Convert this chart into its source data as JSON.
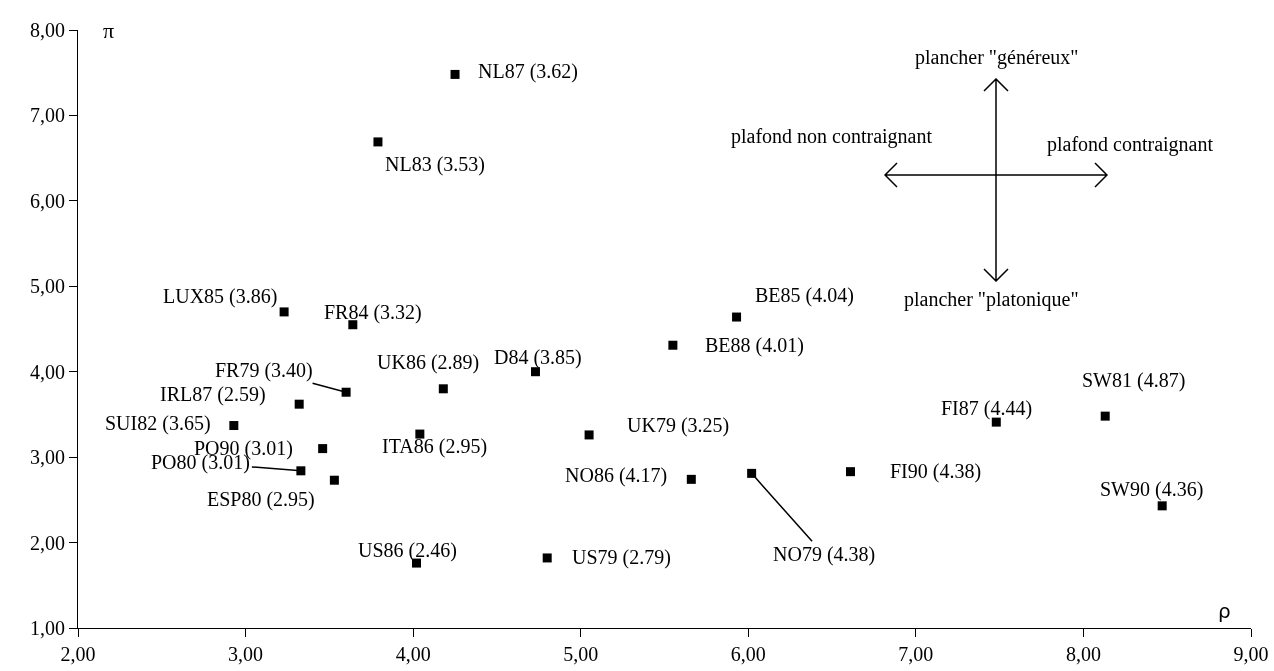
{
  "chart_data": {
    "type": "scatter",
    "xlabel": "ρ",
    "ylabel": "π",
    "x": [
      4.25,
      3.79,
      3.23,
      3.64,
      3.6,
      4.18,
      3.32,
      2.93,
      3.46,
      3.33,
      3.53,
      4.04,
      4.73,
      5.05,
      5.93,
      5.55,
      5.66,
      6.02,
      6.61,
      7.48,
      8.13,
      8.47,
      4.02,
      4.8
    ],
    "series": [
      {
        "color": "#000000",
        "values": [
          7.48,
          6.69,
          4.7,
          4.55,
          3.76,
          3.8,
          3.62,
          3.37,
          3.1,
          2.84,
          2.73,
          3.27,
          4.0,
          3.26,
          4.64,
          4.31,
          2.74,
          2.81,
          2.83,
          3.41,
          3.48,
          2.43,
          1.76,
          1.82
        ]
      }
    ],
    "xlim": [
      2,
      9
    ],
    "xticks": [
      {
        "value": 2,
        "label": "2,00"
      },
      {
        "value": 3,
        "label": "3,00"
      },
      {
        "value": 4,
        "label": "4,00"
      },
      {
        "value": 5,
        "label": "5,00"
      },
      {
        "value": 6,
        "label": "6,00"
      },
      {
        "value": 7,
        "label": "7,00"
      },
      {
        "value": 8,
        "label": "8,00"
      },
      {
        "value": 9,
        "label": "9,00"
      }
    ],
    "ylim": [
      1,
      8
    ],
    "yticks": [
      {
        "value": 1,
        "label": "1,00"
      },
      {
        "value": 2,
        "label": "2,00"
      },
      {
        "value": 3,
        "label": "3,00"
      },
      {
        "value": 4,
        "label": "4,00"
      },
      {
        "value": 5,
        "label": "5,00"
      },
      {
        "value": 6,
        "label": "6,00"
      },
      {
        "value": 7,
        "label": "7,00"
      },
      {
        "value": 8,
        "label": "8,00"
      }
    ],
    "grid": false,
    "marker": "square",
    "annotations": [
      {
        "text": "NL87 (3.62)",
        "x": 4.25,
        "y": 7.48
      },
      {
        "text": "NL83 (3.53)",
        "x": 3.79,
        "y": 6.69
      },
      {
        "text": "LUX85 (3.86)",
        "x": 3.23,
        "y": 4.7
      },
      {
        "text": "FR84 (3.32)",
        "x": 3.64,
        "y": 4.55
      },
      {
        "text": "FR79 (3.40)",
        "x": 3.6,
        "y": 3.76
      },
      {
        "text": "UK86 (2.89)",
        "x": 4.18,
        "y": 3.8
      },
      {
        "text": "IRL87 (2.59)",
        "x": 3.32,
        "y": 3.62
      },
      {
        "text": "SUI82 (3.65)",
        "x": 2.93,
        "y": 3.37
      },
      {
        "text": "PO90 (3.01)",
        "x": 3.46,
        "y": 3.1
      },
      {
        "text": "PO80 (3.01)",
        "x": 3.33,
        "y": 2.84
      },
      {
        "text": "ESP80 (2.95)",
        "x": 3.53,
        "y": 2.73
      },
      {
        "text": "ITA86 (2.95)",
        "x": 4.04,
        "y": 3.27
      },
      {
        "text": "D84 (3.85)",
        "x": 4.73,
        "y": 4.0
      },
      {
        "text": "UK79 (3.25)",
        "x": 5.05,
        "y": 3.26
      },
      {
        "text": "BE85 (4.04)",
        "x": 5.93,
        "y": 4.64
      },
      {
        "text": "BE88 (4.01)",
        "x": 5.55,
        "y": 4.31
      },
      {
        "text": "NO86 (4.17)",
        "x": 5.66,
        "y": 2.74
      },
      {
        "text": "NO79 (4.38)",
        "x": 6.02,
        "y": 2.81
      },
      {
        "text": "FI90 (4.38)",
        "x": 6.61,
        "y": 2.83
      },
      {
        "text": "FI87 (4.44)",
        "x": 7.48,
        "y": 3.41
      },
      {
        "text": "SW81 (4.87)",
        "x": 8.13,
        "y": 3.48
      },
      {
        "text": "SW90 (4.36)",
        "x": 8.47,
        "y": 2.43
      },
      {
        "text": "US86 (2.46)",
        "x": 4.02,
        "y": 1.76
      },
      {
        "text": "US79 (2.79)",
        "x": 4.8,
        "y": 1.82
      },
      "plancher \"généreux\"",
      "plafond non contraignant",
      "plafond contraignant",
      "plancher \"platonique\""
    ]
  }
}
